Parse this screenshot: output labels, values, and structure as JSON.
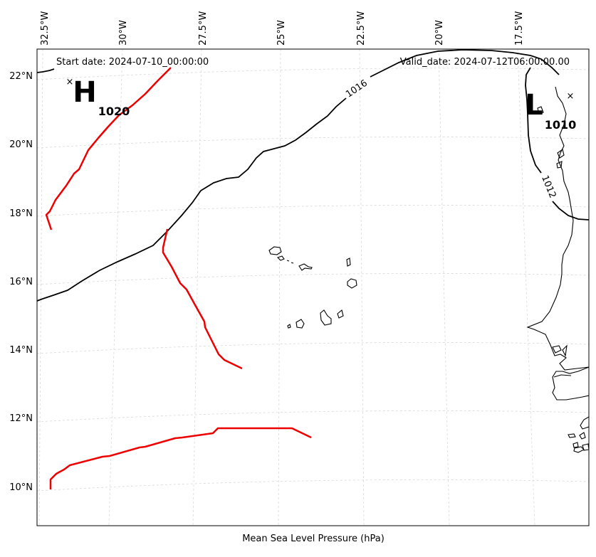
{
  "header": {
    "start_date": "Start date: 2024-07-10_00:00:00",
    "valid_date": "Valid_date: 2024-07-12T06:00:00.00"
  },
  "xlabel": "Mean Sea Level Pressure (hPa)",
  "lon_labels": [
    "32.5°W",
    "30°W",
    "27.5°W",
    "25°W",
    "22.5°W",
    "20°W",
    "17.5°W"
  ],
  "lat_labels": [
    "22°N",
    "20°N",
    "18°N",
    "16°N",
    "14°N",
    "12°N",
    "10°N"
  ],
  "isobar_labels": [
    "1016",
    "1012"
  ],
  "pressure_centers": {
    "high": {
      "symbol": "H",
      "value": "1020",
      "marker": "×"
    },
    "low": {
      "symbol": "L",
      "value": "1010",
      "marker": "×"
    }
  },
  "colors": {
    "isobar": "#000000",
    "front": "#ee0000",
    "grid": "#d0d0d0"
  }
}
